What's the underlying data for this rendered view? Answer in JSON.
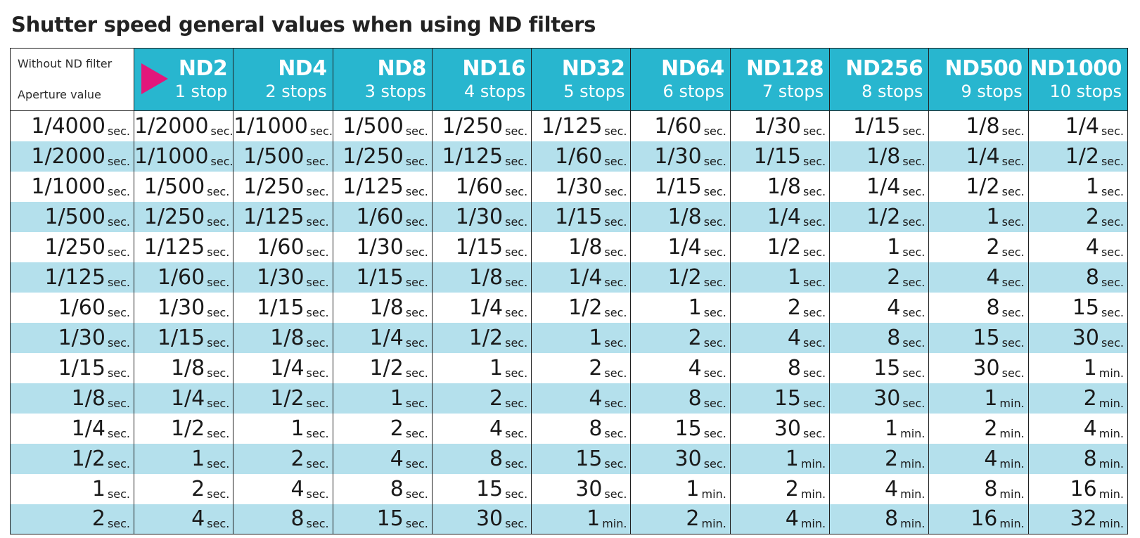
{
  "title": "Shutter speed general values when using ND filters",
  "corner": {
    "line1": "Without ND filter",
    "line2": "Aperture value"
  },
  "colors": {
    "header_bg": "#28b6cf",
    "header_text": "#ffffff",
    "stripe_row": "#b4e0ec",
    "arrow": "#e2177b",
    "border": "#1f1f1f"
  },
  "filters": [
    {
      "name": "ND2",
      "stops": "1 stop"
    },
    {
      "name": "ND4",
      "stops": "2 stops"
    },
    {
      "name": "ND8",
      "stops": "3 stops"
    },
    {
      "name": "ND16",
      "stops": "4 stops"
    },
    {
      "name": "ND32",
      "stops": "5 stops"
    },
    {
      "name": "ND64",
      "stops": "6 stops"
    },
    {
      "name": "ND128",
      "stops": "7 stops"
    },
    {
      "name": "ND256",
      "stops": "8 stops"
    },
    {
      "name": "ND500",
      "stops": "9 stops"
    },
    {
      "name": "ND1000",
      "stops": "10 stops"
    }
  ],
  "rows": [
    [
      [
        "1/4000",
        "sec."
      ],
      [
        "1/2000",
        "sec."
      ],
      [
        "1/1000",
        "sec."
      ],
      [
        "1/500",
        "sec."
      ],
      [
        "1/250",
        "sec."
      ],
      [
        "1/125",
        "sec."
      ],
      [
        "1/60",
        "sec."
      ],
      [
        "1/30",
        "sec."
      ],
      [
        "1/15",
        "sec."
      ],
      [
        "1/8",
        "sec."
      ],
      [
        "1/4",
        "sec."
      ]
    ],
    [
      [
        "1/2000",
        "sec."
      ],
      [
        "1/1000",
        "sec."
      ],
      [
        "1/500",
        "sec."
      ],
      [
        "1/250",
        "sec."
      ],
      [
        "1/125",
        "sec."
      ],
      [
        "1/60",
        "sec."
      ],
      [
        "1/30",
        "sec."
      ],
      [
        "1/15",
        "sec."
      ],
      [
        "1/8",
        "sec."
      ],
      [
        "1/4",
        "sec."
      ],
      [
        "1/2",
        "sec."
      ]
    ],
    [
      [
        "1/1000",
        "sec."
      ],
      [
        "1/500",
        "sec."
      ],
      [
        "1/250",
        "sec."
      ],
      [
        "1/125",
        "sec."
      ],
      [
        "1/60",
        "sec."
      ],
      [
        "1/30",
        "sec."
      ],
      [
        "1/15",
        "sec."
      ],
      [
        "1/8",
        "sec."
      ],
      [
        "1/4",
        "sec."
      ],
      [
        "1/2",
        "sec."
      ],
      [
        "1",
        "sec."
      ]
    ],
    [
      [
        "1/500",
        "sec."
      ],
      [
        "1/250",
        "sec."
      ],
      [
        "1/125",
        "sec."
      ],
      [
        "1/60",
        "sec."
      ],
      [
        "1/30",
        "sec."
      ],
      [
        "1/15",
        "sec."
      ],
      [
        "1/8",
        "sec."
      ],
      [
        "1/4",
        "sec."
      ],
      [
        "1/2",
        "sec."
      ],
      [
        "1",
        "sec."
      ],
      [
        "2",
        "sec."
      ]
    ],
    [
      [
        "1/250",
        "sec."
      ],
      [
        "1/125",
        "sec."
      ],
      [
        "1/60",
        "sec."
      ],
      [
        "1/30",
        "sec."
      ],
      [
        "1/15",
        "sec."
      ],
      [
        "1/8",
        "sec."
      ],
      [
        "1/4",
        "sec."
      ],
      [
        "1/2",
        "sec."
      ],
      [
        "1",
        "sec."
      ],
      [
        "2",
        "sec."
      ],
      [
        "4",
        "sec."
      ]
    ],
    [
      [
        "1/125",
        "sec."
      ],
      [
        "1/60",
        "sec."
      ],
      [
        "1/30",
        "sec."
      ],
      [
        "1/15",
        "sec."
      ],
      [
        "1/8",
        "sec."
      ],
      [
        "1/4",
        "sec."
      ],
      [
        "1/2",
        "sec."
      ],
      [
        "1",
        "sec."
      ],
      [
        "2",
        "sec."
      ],
      [
        "4",
        "sec."
      ],
      [
        "8",
        "sec."
      ]
    ],
    [
      [
        "1/60",
        "sec."
      ],
      [
        "1/30",
        "sec."
      ],
      [
        "1/15",
        "sec."
      ],
      [
        "1/8",
        "sec."
      ],
      [
        "1/4",
        "sec."
      ],
      [
        "1/2",
        "sec."
      ],
      [
        "1",
        "sec."
      ],
      [
        "2",
        "sec."
      ],
      [
        "4",
        "sec."
      ],
      [
        "8",
        "sec."
      ],
      [
        "15",
        "sec."
      ]
    ],
    [
      [
        "1/30",
        "sec."
      ],
      [
        "1/15",
        "sec."
      ],
      [
        "1/8",
        "sec."
      ],
      [
        "1/4",
        "sec."
      ],
      [
        "1/2",
        "sec."
      ],
      [
        "1",
        "sec."
      ],
      [
        "2",
        "sec."
      ],
      [
        "4",
        "sec."
      ],
      [
        "8",
        "sec."
      ],
      [
        "15",
        "sec."
      ],
      [
        "30",
        "sec."
      ]
    ],
    [
      [
        "1/15",
        "sec."
      ],
      [
        "1/8",
        "sec."
      ],
      [
        "1/4",
        "sec."
      ],
      [
        "1/2",
        "sec."
      ],
      [
        "1",
        "sec."
      ],
      [
        "2",
        "sec."
      ],
      [
        "4",
        "sec."
      ],
      [
        "8",
        "sec."
      ],
      [
        "15",
        "sec."
      ],
      [
        "30",
        "sec."
      ],
      [
        "1",
        "min."
      ]
    ],
    [
      [
        "1/8",
        "sec."
      ],
      [
        "1/4",
        "sec."
      ],
      [
        "1/2",
        "sec."
      ],
      [
        "1",
        "sec."
      ],
      [
        "2",
        "sec."
      ],
      [
        "4",
        "sec."
      ],
      [
        "8",
        "sec."
      ],
      [
        "15",
        "sec."
      ],
      [
        "30",
        "sec."
      ],
      [
        "1",
        "min."
      ],
      [
        "2",
        "min."
      ]
    ],
    [
      [
        "1/4",
        "sec."
      ],
      [
        "1/2",
        "sec."
      ],
      [
        "1",
        "sec."
      ],
      [
        "2",
        "sec."
      ],
      [
        "4",
        "sec."
      ],
      [
        "8",
        "sec."
      ],
      [
        "15",
        "sec."
      ],
      [
        "30",
        "sec."
      ],
      [
        "1",
        "min."
      ],
      [
        "2",
        "min."
      ],
      [
        "4",
        "min."
      ]
    ],
    [
      [
        "1/2",
        "sec."
      ],
      [
        "1",
        "sec."
      ],
      [
        "2",
        "sec."
      ],
      [
        "4",
        "sec."
      ],
      [
        "8",
        "sec."
      ],
      [
        "15",
        "sec."
      ],
      [
        "30",
        "sec."
      ],
      [
        "1",
        "min."
      ],
      [
        "2",
        "min."
      ],
      [
        "4",
        "min."
      ],
      [
        "8",
        "min."
      ]
    ],
    [
      [
        "1",
        "sec."
      ],
      [
        "2",
        "sec."
      ],
      [
        "4",
        "sec."
      ],
      [
        "8",
        "sec."
      ],
      [
        "15",
        "sec."
      ],
      [
        "30",
        "sec."
      ],
      [
        "1",
        "min."
      ],
      [
        "2",
        "min."
      ],
      [
        "4",
        "min."
      ],
      [
        "8",
        "min."
      ],
      [
        "16",
        "min."
      ]
    ],
    [
      [
        "2",
        "sec."
      ],
      [
        "4",
        "sec."
      ],
      [
        "8",
        "sec."
      ],
      [
        "15",
        "sec."
      ],
      [
        "30",
        "sec."
      ],
      [
        "1",
        "min."
      ],
      [
        "2",
        "min."
      ],
      [
        "4",
        "min."
      ],
      [
        "8",
        "min."
      ],
      [
        "16",
        "min."
      ],
      [
        "32",
        "min."
      ]
    ]
  ]
}
